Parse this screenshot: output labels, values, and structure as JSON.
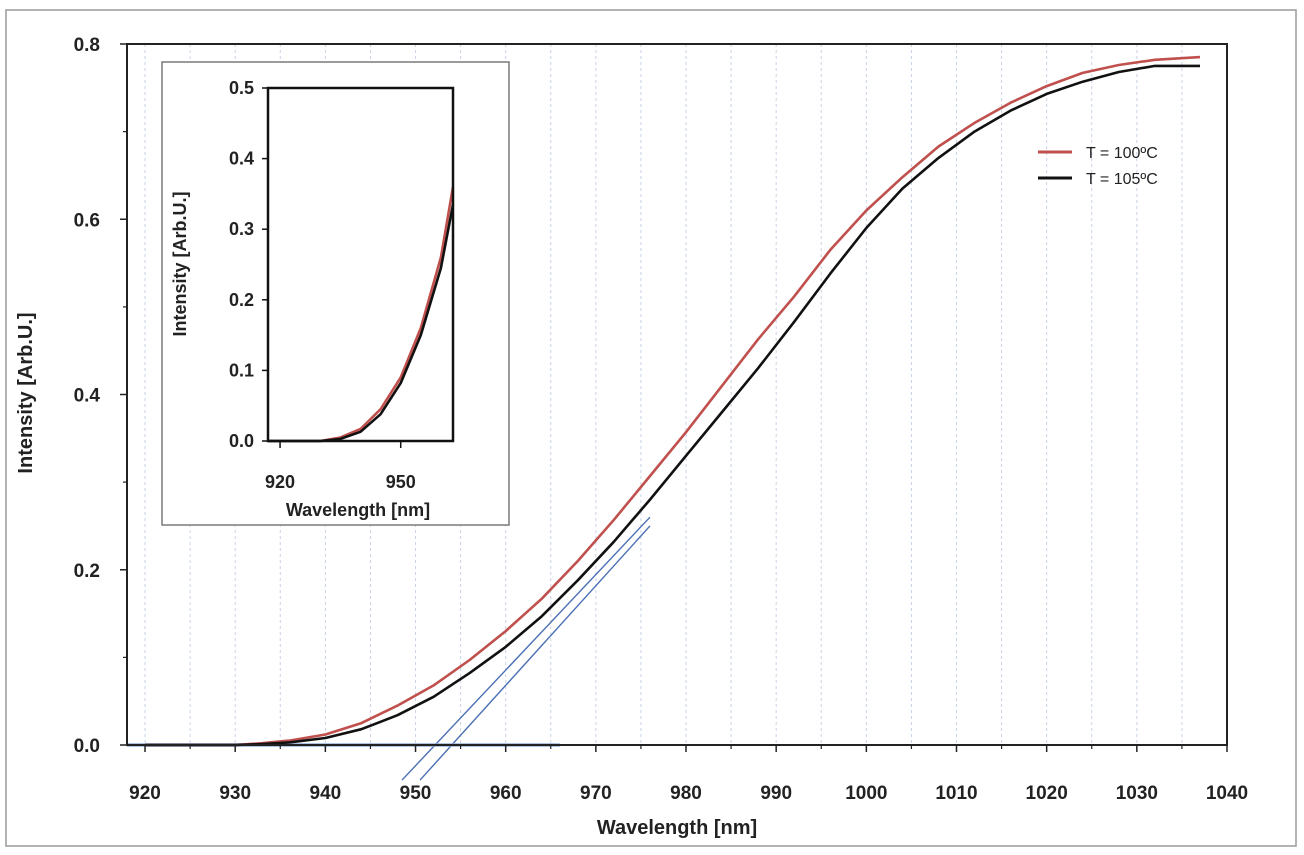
{
  "chart_data": [
    {
      "type": "line",
      "xlabel": "Wavelength [nm]",
      "ylabel": "Intensity [Arb.U.]",
      "xlim": [
        918,
        1040
      ],
      "ylim": [
        0,
        0.8
      ],
      "xticks": [
        920,
        930,
        940,
        950,
        960,
        970,
        980,
        990,
        1000,
        1010,
        1020,
        1030,
        1040
      ],
      "yticks": [
        0.0,
        0.2,
        0.4,
        0.6,
        0.8
      ],
      "xtick_labels": [
        "920",
        "930",
        "940",
        "950",
        "960",
        "970",
        "980",
        "990",
        "1000",
        "1010",
        "1020",
        "1030",
        "1040"
      ],
      "ytick_labels": [
        "0.0",
        "0.2",
        "0.4",
        "0.6",
        "0.8"
      ],
      "grid": "vertical dashed",
      "legend_position": "top-right",
      "series": [
        {
          "name": "T = 100ºC",
          "color": "#c0504d",
          "x": [
            920,
            925,
            930,
            933,
            936,
            940,
            944,
            948,
            952,
            956,
            960,
            964,
            968,
            972,
            976,
            980,
            984,
            988,
            992,
            996,
            1000,
            1004,
            1008,
            1012,
            1016,
            1020,
            1024,
            1028,
            1032,
            1037
          ],
          "y": [
            0.0,
            0.0,
            0.0,
            0.002,
            0.005,
            0.012,
            0.025,
            0.045,
            0.068,
            0.097,
            0.13,
            0.167,
            0.21,
            0.257,
            0.307,
            0.357,
            0.41,
            0.463,
            0.512,
            0.565,
            0.61,
            0.648,
            0.683,
            0.71,
            0.733,
            0.752,
            0.767,
            0.776,
            0.782,
            0.785
          ]
        },
        {
          "name": "T = 105ºC",
          "color": "#111111",
          "x": [
            920,
            925,
            930,
            933,
            936,
            940,
            944,
            948,
            952,
            956,
            960,
            964,
            968,
            972,
            976,
            980,
            984,
            988,
            992,
            996,
            1000,
            1004,
            1008,
            1012,
            1016,
            1020,
            1024,
            1028,
            1032,
            1037
          ],
          "y": [
            0.0,
            0.0,
            0.0,
            0.001,
            0.003,
            0.008,
            0.018,
            0.034,
            0.055,
            0.082,
            0.112,
            0.147,
            0.188,
            0.232,
            0.28,
            0.33,
            0.38,
            0.43,
            0.483,
            0.538,
            0.59,
            0.635,
            0.67,
            0.7,
            0.724,
            0.743,
            0.757,
            0.768,
            0.775,
            0.775
          ]
        }
      ],
      "fit_lines": [
        {
          "color": "#4a6fb5",
          "x": [
            948.5,
            976
          ],
          "y": [
            -0.04,
            0.26
          ]
        },
        {
          "color": "#4a6fb5",
          "x": [
            950.5,
            976
          ],
          "y": [
            -0.04,
            0.25
          ]
        },
        {
          "color": "#8fa8d8",
          "x": [
            918,
            966
          ],
          "y": [
            0.0,
            0.0
          ]
        }
      ]
    },
    {
      "type": "line",
      "inset": true,
      "xlabel": "Wavelength [nm]",
      "ylabel": "Intensity [Arb.U.]",
      "xlim": [
        917,
        963
      ],
      "ylim": [
        0,
        0.5
      ],
      "xticks": [
        920,
        950
      ],
      "yticks": [
        0.0,
        0.1,
        0.2,
        0.3,
        0.4,
        0.5
      ],
      "xtick_labels": [
        "920",
        "950"
      ],
      "ytick_labels": [
        "0.0",
        "0.1",
        "0.2",
        "0.3",
        "0.4",
        "0.5"
      ],
      "series": [
        {
          "name": "T = 100ºC",
          "color": "#c0504d",
          "x": [
            917,
            925,
            930,
            935,
            940,
            945,
            950,
            955,
            960,
            963
          ],
          "y": [
            0.0,
            0.0,
            0.0,
            0.005,
            0.017,
            0.045,
            0.09,
            0.16,
            0.26,
            0.36
          ]
        },
        {
          "name": "T = 105ºC",
          "color": "#111111",
          "x": [
            917,
            925,
            930,
            935,
            940,
            945,
            950,
            955,
            960,
            963
          ],
          "y": [
            0.0,
            0.0,
            0.0,
            0.003,
            0.013,
            0.038,
            0.082,
            0.15,
            0.245,
            0.335
          ]
        }
      ]
    }
  ]
}
